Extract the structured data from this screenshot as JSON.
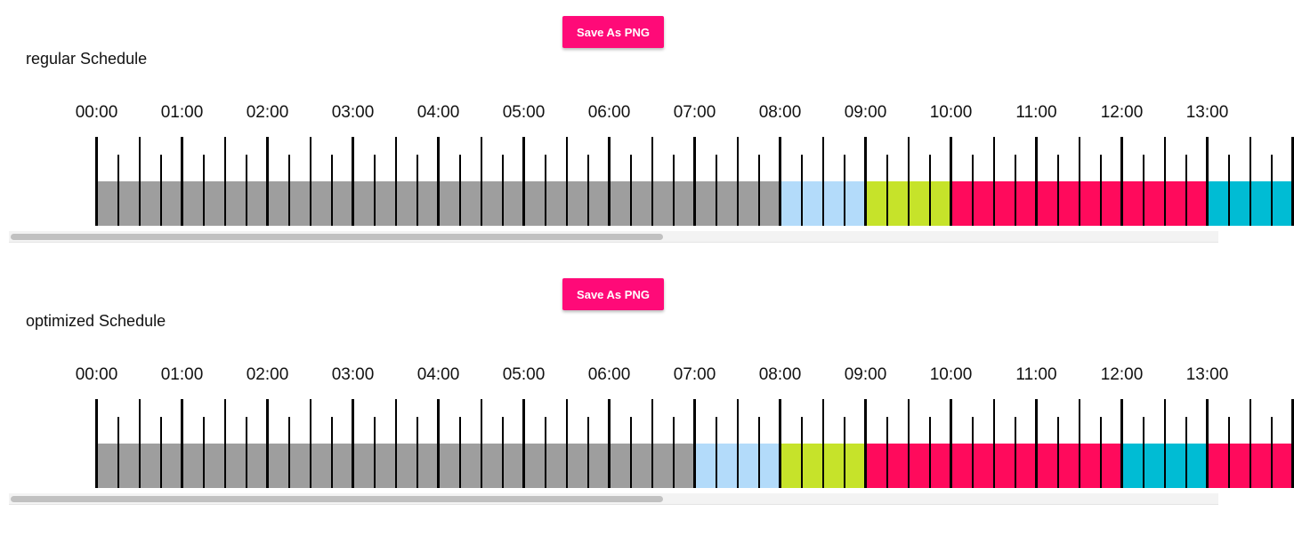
{
  "hour_labels": [
    "00:00",
    "01:00",
    "02:00",
    "03:00",
    "04:00",
    "05:00",
    "06:00",
    "07:00",
    "08:00",
    "09:00",
    "10:00",
    "11:00",
    "12:00",
    "13:00"
  ],
  "colors": {
    "idle": "#9e9e9e",
    "light_blue": "#b3dbfa",
    "lime": "#c6e32a",
    "pink": "#ff0a5c",
    "cyan": "#00bcd4",
    "button": "#ff0a78"
  },
  "schedules": [
    {
      "title": "regular Schedule",
      "save_label": "Save As PNG",
      "segments": [
        {
          "start": 0,
          "end": 8,
          "color": "idle"
        },
        {
          "start": 8,
          "end": 9,
          "color": "light_blue"
        },
        {
          "start": 9,
          "end": 10,
          "color": "lime"
        },
        {
          "start": 10,
          "end": 13,
          "color": "pink"
        },
        {
          "start": 13,
          "end": 14,
          "color": "cyan"
        }
      ],
      "scroll_position": 0
    },
    {
      "title": "optimized Schedule",
      "save_label": "Save As PNG",
      "segments": [
        {
          "start": 0,
          "end": 7,
          "color": "idle"
        },
        {
          "start": 7,
          "end": 8,
          "color": "light_blue"
        },
        {
          "start": 8,
          "end": 9,
          "color": "lime"
        },
        {
          "start": 9,
          "end": 12,
          "color": "pink"
        },
        {
          "start": 12,
          "end": 13,
          "color": "cyan"
        },
        {
          "start": 13,
          "end": 14,
          "color": "pink"
        }
      ],
      "scroll_position": 0
    }
  ]
}
